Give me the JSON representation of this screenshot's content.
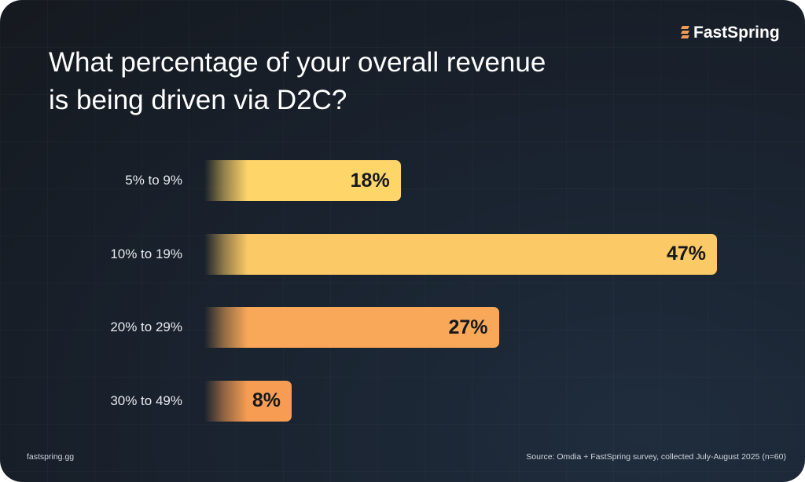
{
  "brand": "FastSpring",
  "footer_left": "fastspring.gg",
  "footer_right": "Source: Omdia + FastSpring survey, collected July-August 2025 (n=60)",
  "chart_data": {
    "type": "bar",
    "orientation": "horizontal",
    "title": "What percentage of your overall revenue is being driven via D2C?",
    "categories": [
      "5% to 9%",
      "10% to 19%",
      "20% to 29%",
      "30% to 49%"
    ],
    "values": [
      18,
      47,
      27,
      8
    ],
    "value_labels": [
      "18%",
      "47%",
      "27%",
      "8%"
    ],
    "colors": [
      "#fdd569",
      "#fbc965",
      "#f8a858",
      "#f79d53"
    ],
    "xlim": [
      0,
      47
    ],
    "grid": false
  }
}
